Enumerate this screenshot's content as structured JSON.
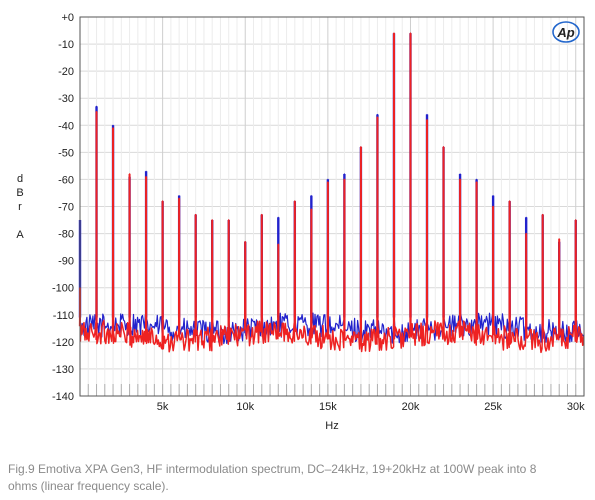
{
  "chart_data": {
    "type": "line",
    "xlabel": "Hz",
    "ylabel_lines": [
      "d",
      "B",
      "r",
      "",
      "A"
    ],
    "xlim": [
      0,
      30500
    ],
    "ylim": [
      -140,
      0
    ],
    "x_ticks": [
      5000,
      10000,
      15000,
      20000,
      25000,
      30000
    ],
    "x_tick_labels": [
      "5k",
      "10k",
      "15k",
      "20k",
      "25k",
      "30k"
    ],
    "y_ticks": [
      0,
      -10,
      -20,
      -30,
      -40,
      -50,
      -60,
      -70,
      -80,
      -90,
      -100,
      -110,
      -120,
      -130,
      -140
    ],
    "y_tick_labels": [
      "+0",
      "-10",
      "-20",
      "-30",
      "-40",
      "-50",
      "-60",
      "-70",
      "-80",
      "-90",
      "-100",
      "-110",
      "-120",
      "-130",
      "-140"
    ],
    "grid": true,
    "series": [
      {
        "color": "#2222cc",
        "noise_floor": -115,
        "peaks_x": [
          0,
          1000,
          2000,
          3000,
          4000,
          5000,
          6000,
          7000,
          8000,
          9000,
          10000,
          11000,
          12000,
          13000,
          14000,
          15000,
          16000,
          17000,
          18000,
          19000,
          20000,
          21000,
          22000,
          23000,
          24000,
          25000,
          26000,
          27000,
          28000,
          29000,
          30000
        ],
        "peaks_y": [
          -75,
          -33,
          -40,
          -59,
          -57,
          -68,
          -66,
          -73,
          -75,
          -75,
          -83,
          -73,
          -74,
          -68,
          -66,
          -60,
          -58,
          -48,
          -36,
          -6,
          -6,
          -36,
          -48,
          -58,
          -60,
          -66,
          -68,
          -74,
          -73,
          -83,
          -75
        ]
      },
      {
        "color": "#ee2222",
        "noise_floor": -118,
        "peaks_x": [
          0,
          1000,
          2000,
          3000,
          4000,
          5000,
          6000,
          7000,
          8000,
          9000,
          10000,
          11000,
          12000,
          13000,
          14000,
          15000,
          16000,
          17000,
          18000,
          19000,
          20000,
          21000,
          22000,
          23000,
          24000,
          25000,
          26000,
          27000,
          28000,
          29000,
          30000
        ],
        "peaks_y": [
          -100,
          -35,
          -41,
          -58,
          -59,
          -68,
          -67,
          -73,
          -75,
          -75,
          -83,
          -73,
          -84,
          -68,
          -71,
          -61,
          -60,
          -48,
          -37,
          -6,
          -6,
          -38,
          -48,
          -60,
          -61,
          -70,
          -68,
          -80,
          -73,
          -82,
          -75
        ]
      }
    ]
  },
  "logo": {
    "text": "Ap",
    "color": "#2266cc"
  },
  "caption": "Fig.9 Emotiva XPA Gen3, HF intermodulation spectrum, DC–24kHz, 19+20kHz at 100W peak into 8 ohms (linear frequency scale)."
}
